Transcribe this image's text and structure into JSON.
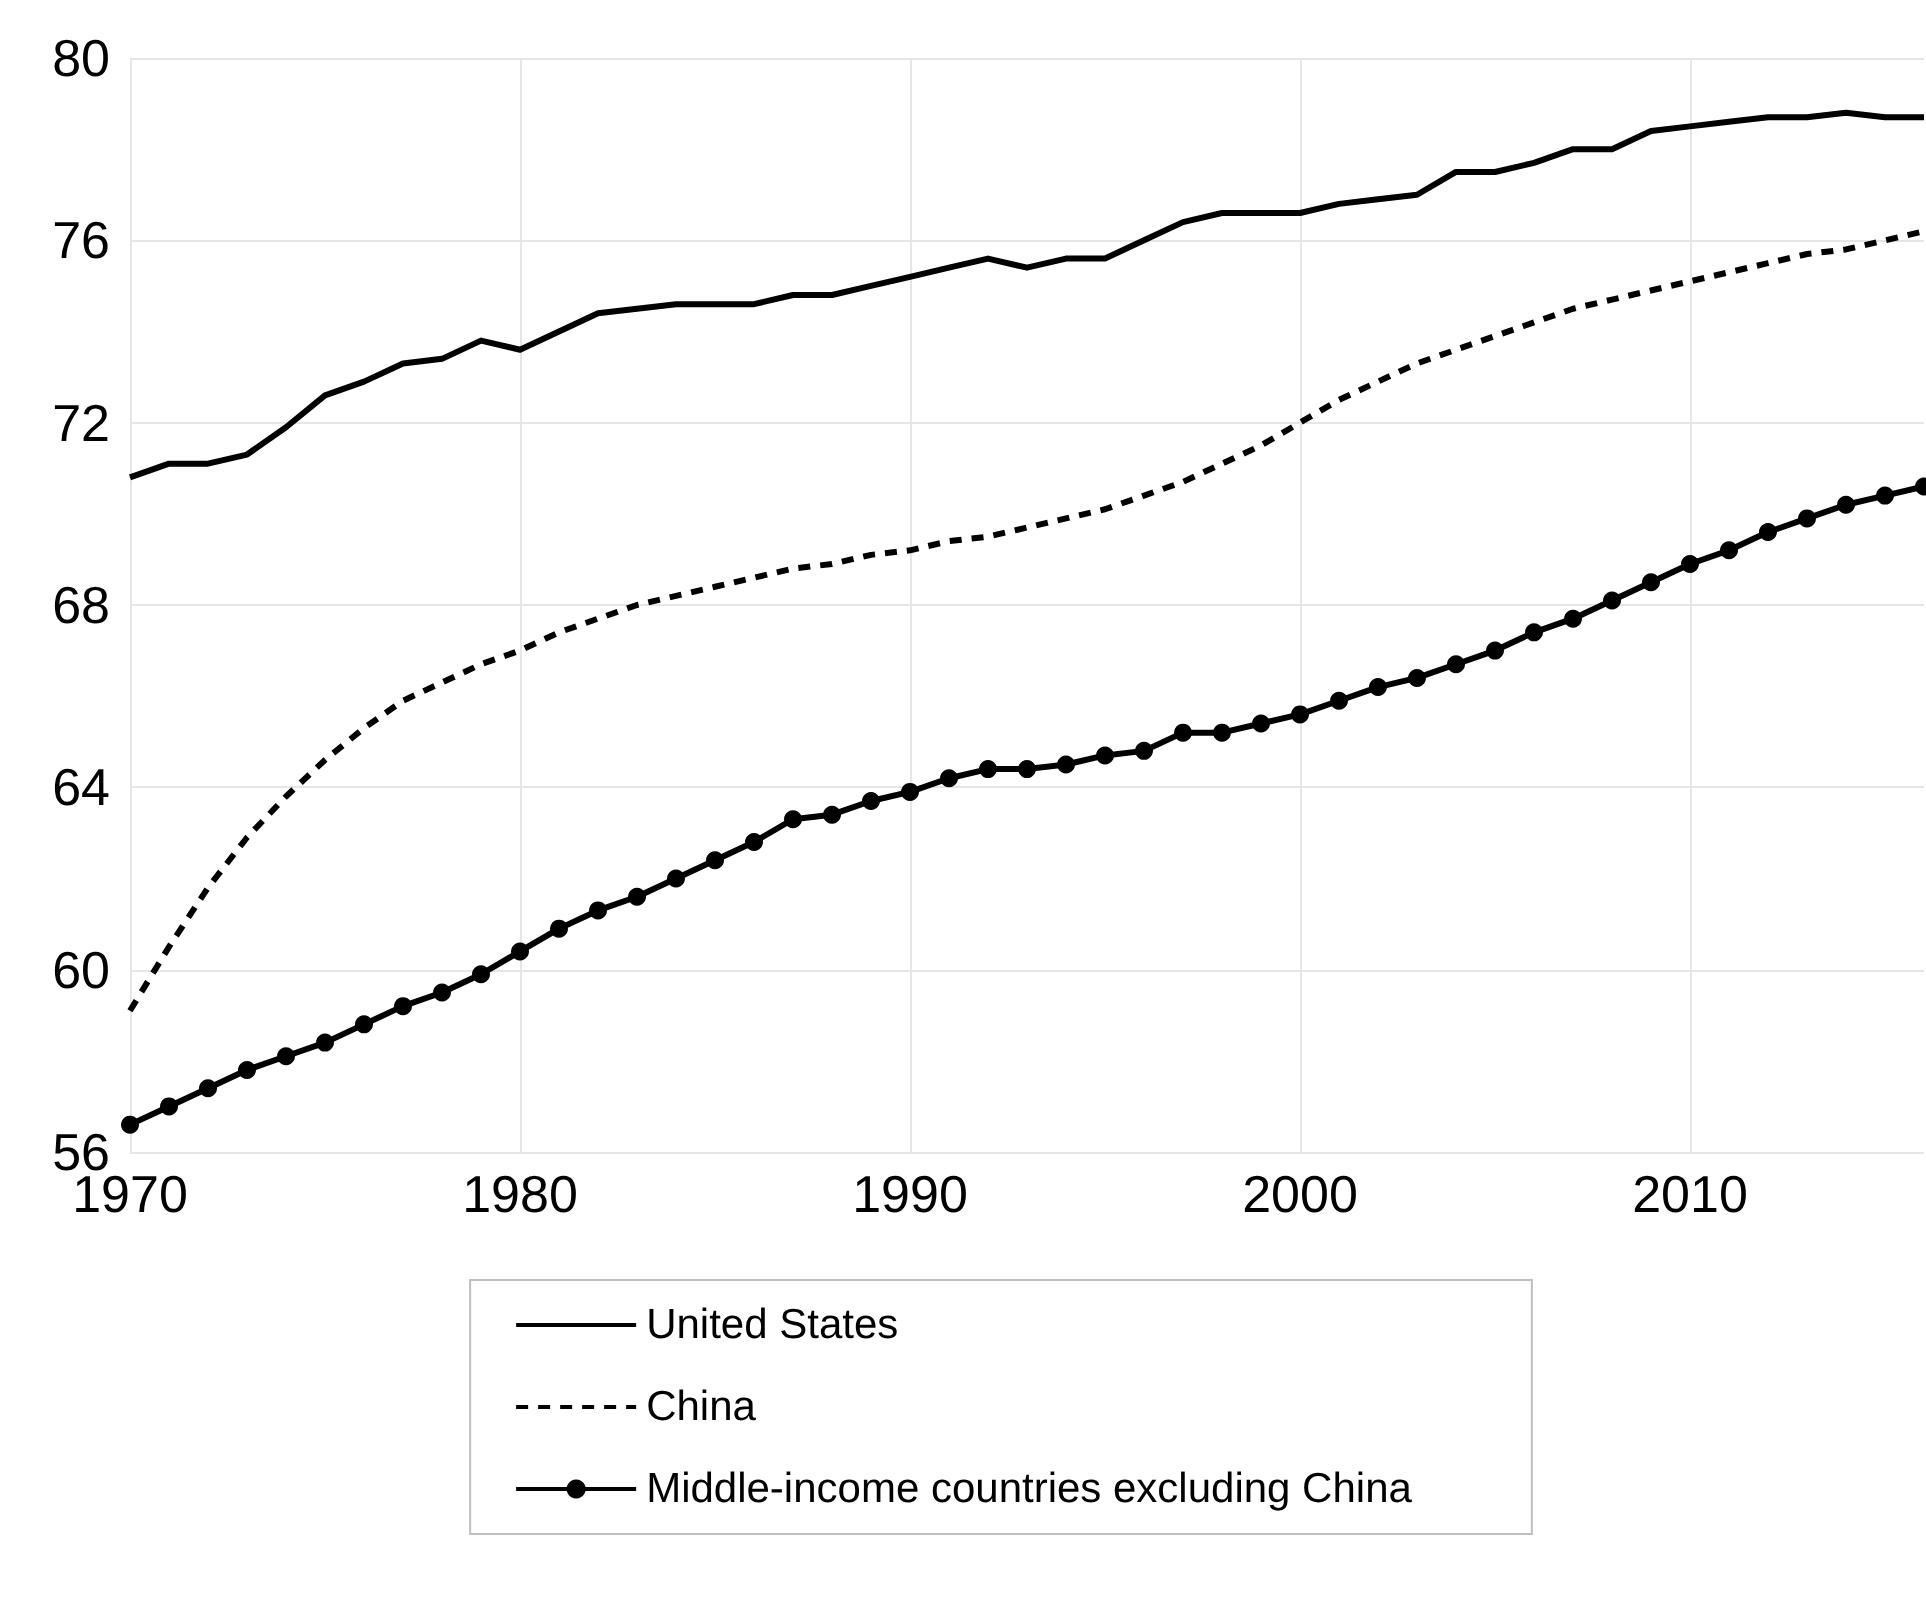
{
  "chart_data": {
    "type": "line",
    "x": [
      1970,
      1971,
      1972,
      1973,
      1974,
      1975,
      1976,
      1977,
      1978,
      1979,
      1980,
      1981,
      1982,
      1983,
      1984,
      1985,
      1986,
      1987,
      1988,
      1989,
      1990,
      1991,
      1992,
      1993,
      1994,
      1995,
      1996,
      1997,
      1998,
      1999,
      2000,
      2001,
      2002,
      2003,
      2004,
      2005,
      2006,
      2007,
      2008,
      2009,
      2010,
      2011,
      2012,
      2013,
      2014,
      2015,
      2016
    ],
    "series": [
      {
        "name": "United States",
        "color": "#000000",
        "line_style": "solid",
        "marker": "none",
        "values": [
          70.8,
          71.1,
          71.1,
          71.3,
          71.9,
          72.6,
          72.9,
          73.3,
          73.4,
          73.8,
          73.6,
          74.0,
          74.4,
          74.5,
          74.6,
          74.6,
          74.6,
          74.8,
          74.8,
          75.0,
          75.2,
          75.4,
          75.6,
          75.4,
          75.6,
          75.6,
          76.0,
          76.4,
          76.6,
          76.6,
          76.6,
          76.8,
          76.9,
          77.0,
          77.5,
          77.5,
          77.7,
          78.0,
          78.0,
          78.4,
          78.5,
          78.6,
          78.7,
          78.7,
          78.8,
          78.7,
          78.7
        ]
      },
      {
        "name": "China",
        "color": "#000000",
        "line_style": "dashed",
        "marker": "none",
        "values": [
          59.1,
          60.5,
          61.8,
          62.9,
          63.8,
          64.6,
          65.3,
          65.9,
          66.3,
          66.7,
          67.0,
          67.4,
          67.7,
          68.0,
          68.2,
          68.4,
          68.6,
          68.8,
          68.9,
          69.1,
          69.2,
          69.4,
          69.5,
          69.7,
          69.9,
          70.1,
          70.4,
          70.7,
          71.1,
          71.5,
          72.0,
          72.5,
          72.9,
          73.3,
          73.6,
          73.9,
          74.2,
          74.5,
          74.7,
          74.9,
          75.1,
          75.3,
          75.5,
          75.7,
          75.8,
          76.0,
          76.2
        ]
      },
      {
        "name": "Middle-income countries excluding China",
        "color": "#000000",
        "line_style": "solid",
        "marker": "circle",
        "values": [
          56.6,
          57.0,
          57.4,
          57.8,
          58.1,
          58.4,
          58.8,
          59.2,
          59.5,
          59.9,
          60.4,
          60.9,
          61.3,
          61.6,
          62.0,
          62.4,
          62.8,
          63.3,
          63.4,
          63.7,
          63.9,
          64.2,
          64.4,
          64.4,
          64.5,
          64.7,
          64.8,
          65.2,
          65.2,
          65.4,
          65.6,
          65.9,
          66.2,
          66.4,
          66.7,
          67.0,
          67.4,
          67.7,
          68.1,
          68.5,
          68.9,
          69.2,
          69.6,
          69.9,
          70.2,
          70.4,
          70.6
        ]
      }
    ],
    "xlim": [
      1970,
      2016
    ],
    "xticks": [
      1970,
      1980,
      1990,
      2000,
      2010
    ],
    "ylim": [
      56,
      80
    ],
    "yticks": [
      56,
      60,
      64,
      68,
      72,
      76,
      80
    ],
    "grid": true,
    "legend": "bottom"
  }
}
